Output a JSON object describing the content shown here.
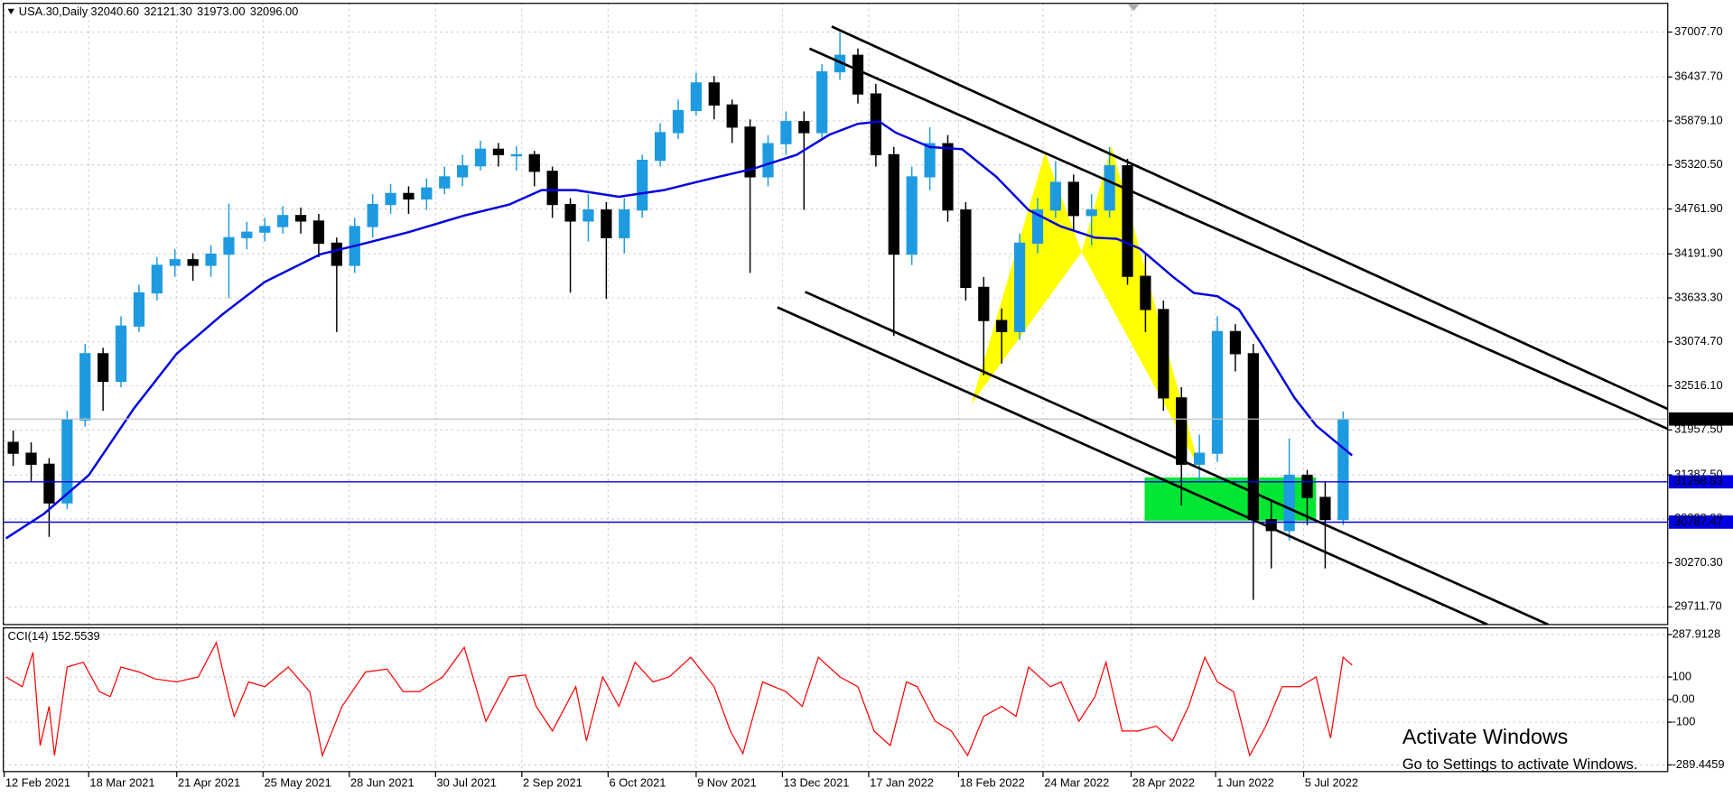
{
  "chart_data": [
    {
      "type": "candlestick",
      "title": "USA.30,Daily",
      "header_values": [
        "32040.60",
        "32121.30",
        "31973.00",
        "32096.00"
      ],
      "open": [
        31800,
        31662,
        31522,
        31031,
        32083,
        32925,
        32574,
        33276,
        33697,
        34047,
        34118,
        34047,
        34188,
        34398,
        34468,
        34539,
        34679,
        34609,
        34328,
        34047,
        34539,
        34819,
        34959,
        34889,
        35029,
        35170,
        35310,
        35521,
        35451,
        35451,
        35240,
        34819,
        34609,
        34749,
        34398,
        34749,
        35380,
        35731,
        36012,
        36362,
        36082,
        35801,
        35170,
        35591,
        35871,
        35731,
        36503,
        36713,
        36222,
        35451,
        34188,
        35170,
        35591,
        34749,
        33767,
        33346,
        33206,
        34328,
        34749,
        35100,
        34679,
        34749,
        35310,
        33907,
        33486,
        32364,
        31522,
        31662,
        33206,
        32925,
        30820,
        30680,
        31382,
        31101,
        30820
      ],
      "high": [
        31950,
        31800,
        31600,
        32200,
        33050,
        33000,
        33400,
        33800,
        34150,
        34250,
        34200,
        34300,
        34830,
        34600,
        34650,
        34800,
        34780,
        34700,
        34400,
        34650,
        34950,
        35080,
        35050,
        35150,
        35300,
        35450,
        35630,
        35600,
        35560,
        35500,
        35300,
        34900,
        34950,
        34850,
        34900,
        35450,
        35850,
        36150,
        36490,
        36450,
        36150,
        35900,
        35700,
        36000,
        36000,
        36600,
        37000,
        36800,
        36350,
        35550,
        35300,
        35800,
        35700,
        34850,
        33900,
        33500,
        34450,
        34900,
        35370,
        35200,
        34950,
        35550,
        35400,
        34200,
        33600,
        32500,
        31900,
        33400,
        33300,
        33050,
        31050,
        31850,
        31450,
        31300,
        32190
      ],
      "low": [
        31500,
        31300,
        30600,
        30950,
        32000,
        32200,
        32500,
        33200,
        33600,
        33900,
        33850,
        33900,
        33630,
        34250,
        34350,
        34450,
        34450,
        34150,
        33200,
        33950,
        34400,
        34700,
        34700,
        34750,
        34950,
        35050,
        35250,
        35300,
        35250,
        35050,
        34650,
        33700,
        34350,
        33620,
        34200,
        34650,
        35300,
        35650,
        35950,
        35900,
        35600,
        33950,
        35050,
        35450,
        34750,
        35650,
        36400,
        36100,
        35300,
        33150,
        34050,
        35000,
        34600,
        33600,
        32650,
        32800,
        33100,
        34200,
        34650,
        34500,
        34300,
        34650,
        33800,
        33200,
        32200,
        31000,
        31300,
        31550,
        32700,
        29800,
        30200,
        30550,
        30750,
        30200,
        30750
      ],
      "close": [
        31662,
        31522,
        31031,
        32083,
        32925,
        32574,
        33276,
        33697,
        34047,
        34118,
        34047,
        34188,
        34398,
        34468,
        34539,
        34679,
        34609,
        34328,
        34047,
        34539,
        34819,
        34959,
        34889,
        35029,
        35170,
        35310,
        35521,
        35451,
        35451,
        35240,
        34819,
        34609,
        34749,
        34398,
        34749,
        35380,
        35731,
        36012,
        36362,
        36082,
        35801,
        35170,
        35591,
        35871,
        35731,
        36503,
        36713,
        36222,
        35451,
        34188,
        35170,
        35591,
        34749,
        33767,
        33346,
        33206,
        34328,
        34749,
        35100,
        34679,
        34749,
        35310,
        33907,
        33486,
        32364,
        31522,
        31662,
        33206,
        32925,
        30820,
        30680,
        31382,
        31101,
        30820,
        32096
      ],
      "up_color": "#1e9be0",
      "down_color": "#000000",
      "ma": {
        "color": "#0000e0",
        "x": [
          -0.4,
          1.7,
          4.2,
          6.7,
          9.1,
          11.6,
          14.0,
          17.1,
          19.6,
          22.0,
          25.1,
          27.6,
          29.4,
          31.3,
          33.7,
          36.2,
          38.7,
          41.1,
          43.6,
          45.4,
          47.0,
          48.2,
          49.1,
          51.0,
          52.8,
          54.7,
          56.5,
          58.3,
          60.2,
          61.4,
          62.7,
          64.5,
          65.7,
          67.0,
          68.2,
          69.4,
          71.3,
          72.5,
          74.5
        ],
        "values": [
          30582,
          30891,
          31382,
          32224,
          32925,
          33416,
          33837,
          34188,
          34328,
          34468,
          34679,
          34819,
          35001,
          35001,
          34917,
          35001,
          35142,
          35268,
          35450,
          35703,
          35843,
          35871,
          35731,
          35549,
          35521,
          35170,
          34749,
          34539,
          34398,
          34384,
          34258,
          33907,
          33697,
          33655,
          33486,
          33065,
          32364,
          32013,
          31634
        ]
      },
      "price_lines": [
        {
          "value": 31298.83,
          "color": "#0000e0"
        },
        {
          "value": 30787.47,
          "color": "#0000e0"
        }
      ],
      "current_price": {
        "value": 32096,
        "label": "32096.00"
      },
      "xlim": [
        -0.55,
        92.06
      ],
      "ylim": [
        29487.2,
        37372.5
      ],
      "xticks": [
        {
          "value": -0.5,
          "label": "12 Feb 2021"
        },
        {
          "value": 4.2,
          "label": "18 Mar 2021"
        },
        {
          "value": 9.1,
          "label": "21 Apr 2021"
        },
        {
          "value": 13.9,
          "label": "25 May 2021"
        },
        {
          "value": 18.7,
          "label": "28 Jun 2021"
        },
        {
          "value": 23.5,
          "label": "30 Jul 2021"
        },
        {
          "value": 28.3,
          "label": "2 Sep 2021"
        },
        {
          "value": 33.1,
          "label": "6 Oct 2021"
        },
        {
          "value": 38.0,
          "label": "9 Nov 2021"
        },
        {
          "value": 42.8,
          "label": "13 Dec 2021"
        },
        {
          "value": 47.6,
          "label": "17 Jan 2022"
        },
        {
          "value": 52.6,
          "label": "18 Feb 2022"
        },
        {
          "value": 57.3,
          "label": "24 Mar 2022"
        },
        {
          "value": 62.2,
          "label": "28 Apr 2022"
        },
        {
          "value": 66.9,
          "label": "1 Jun 2022"
        },
        {
          "value": 71.8,
          "label": "5 Jul 2022"
        }
      ],
      "yticks": [
        {
          "value": 37007.7,
          "label": "37007.70"
        },
        {
          "value": 36437.7,
          "label": "36437.70"
        },
        {
          "value": 35879.1,
          "label": "35879.10"
        },
        {
          "value": 35320.5,
          "label": "35320.50"
        },
        {
          "value": 34761.9,
          "label": "34761.90"
        },
        {
          "value": 34191.9,
          "label": "34191.90"
        },
        {
          "value": 33633.3,
          "label": "33633.30"
        },
        {
          "value": 33074.7,
          "label": "33074.70"
        },
        {
          "value": 32516.1,
          "label": "32516.10"
        },
        {
          "value": 31957.5,
          "label": "31957.50"
        },
        {
          "value": 31387.5,
          "label": "31387.50"
        },
        {
          "value": 30828.9,
          "label": "30828.90"
        },
        {
          "value": 30270.3,
          "label": "30270.30"
        },
        {
          "value": 29711.7,
          "label": "29711.70"
        }
      ],
      "grid": true
    },
    {
      "type": "line",
      "title": "CCI(14) 152.5539",
      "color": "#ff0000",
      "x": [
        -0.4,
        0.5,
        1.1,
        1.5,
        2.0,
        2.3,
        3.0,
        3.9,
        4.8,
        5.4,
        6.0,
        7.0,
        7.9,
        9.1,
        10.3,
        11.3,
        12.0,
        12.3,
        13.1,
        14.0,
        15.3,
        16.5,
        17.2,
        18.3,
        19.6,
        20.8,
        21.7,
        22.6,
        23.9,
        25.1,
        26.3,
        27.6,
        28.5,
        29.1,
        30.0,
        31.3,
        31.9,
        32.8,
        33.7,
        34.6,
        35.6,
        36.5,
        37.7,
        39.0,
        39.9,
        40.6,
        41.7,
        43.0,
        43.9,
        44.8,
        46.0,
        47.0,
        47.9,
        48.8,
        49.7,
        50.3,
        51.3,
        52.2,
        53.1,
        54.0,
        55.0,
        55.8,
        56.5,
        57.7,
        58.3,
        59.3,
        60.2,
        60.8,
        61.7,
        62.6,
        63.6,
        64.5,
        65.4,
        66.3,
        67.0,
        67.9,
        68.8,
        69.7,
        70.6,
        71.6,
        72.5,
        73.3,
        74.0,
        74.5
      ],
      "values": [
        100,
        57,
        209,
        -204,
        -30,
        -248,
        144,
        165,
        35,
        13,
        144,
        122,
        91,
        78,
        100,
        252,
        13,
        -74,
        78,
        57,
        144,
        35,
        -248,
        -30,
        122,
        135,
        35,
        35,
        100,
        231,
        -96,
        100,
        109,
        -30,
        -139,
        57,
        -183,
        100,
        -30,
        165,
        78,
        100,
        187,
        57,
        -139,
        -239,
        78,
        35,
        -30,
        187,
        100,
        57,
        -139,
        -204,
        78,
        57,
        -96,
        -139,
        -248,
        -74,
        -30,
        -74,
        144,
        57,
        78,
        -96,
        13,
        165,
        -139,
        -139,
        -117,
        -183,
        -30,
        187,
        78,
        35,
        -248,
        -117,
        57,
        57,
        100,
        -170,
        187,
        152.5539
      ],
      "ylim": [
        -289.4459,
        287.9128
      ],
      "yticks": [
        287.9128,
        100,
        {
          "value": 0,
          "label": "0.00"
        },
        -100,
        -289.4459
      ]
    }
  ],
  "watermark": {
    "title": "Activate Windows",
    "subtitle": "Go to Settings to activate Windows."
  }
}
